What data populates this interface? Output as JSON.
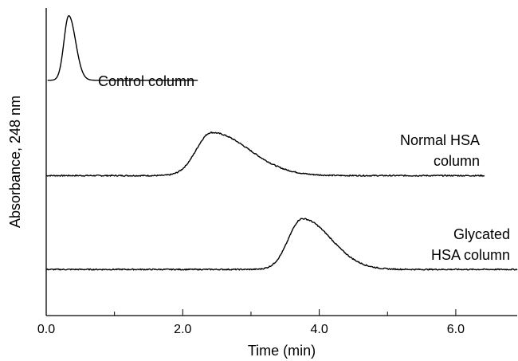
{
  "chart_data": {
    "type": "line",
    "xlabel": "Time (min)",
    "ylabel": "Absorbance, 248 nm",
    "xlim": [
      0,
      6.9
    ],
    "ylim": [
      0,
      1
    ],
    "x_tick_labels": [
      "0.0",
      "2.0",
      "4.0",
      "6.0"
    ],
    "x_major_ticks": [
      0,
      2,
      4,
      6
    ],
    "x_minor_ticks": [
      1,
      3,
      5
    ],
    "grid": false,
    "series": [
      {
        "name": "Control column",
        "label_lines": [
          "Control column"
        ],
        "baseline": 0.765,
        "peaks": [
          {
            "center": 0.33,
            "height": 0.21,
            "sigma_left": 0.07,
            "sigma_right": 0.1,
            "tail": 0.01
          }
        ],
        "x_start": 0.02,
        "x_end": 2.22,
        "noise": 0.0
      },
      {
        "name": "Normal HSA column",
        "label_lines": [
          "Normal HSA",
          "column"
        ],
        "baseline": 0.455,
        "peaks": [
          {
            "center": 2.42,
            "height": 0.14,
            "sigma_left": 0.22,
            "sigma_right": 0.55,
            "tail": 0.0
          }
        ],
        "x_start": 0.0,
        "x_end": 6.42,
        "noise": 0.002
      },
      {
        "name": "Glycated HSA column",
        "label_lines": [
          "Glycated",
          "HSA column"
        ],
        "baseline": 0.15,
        "peaks": [
          {
            "center": 3.75,
            "height": 0.165,
            "sigma_left": 0.2,
            "sigma_right": 0.42,
            "tail": 0.0
          }
        ],
        "x_start": 0.0,
        "x_end": 6.9,
        "noise": 0.002
      }
    ]
  }
}
